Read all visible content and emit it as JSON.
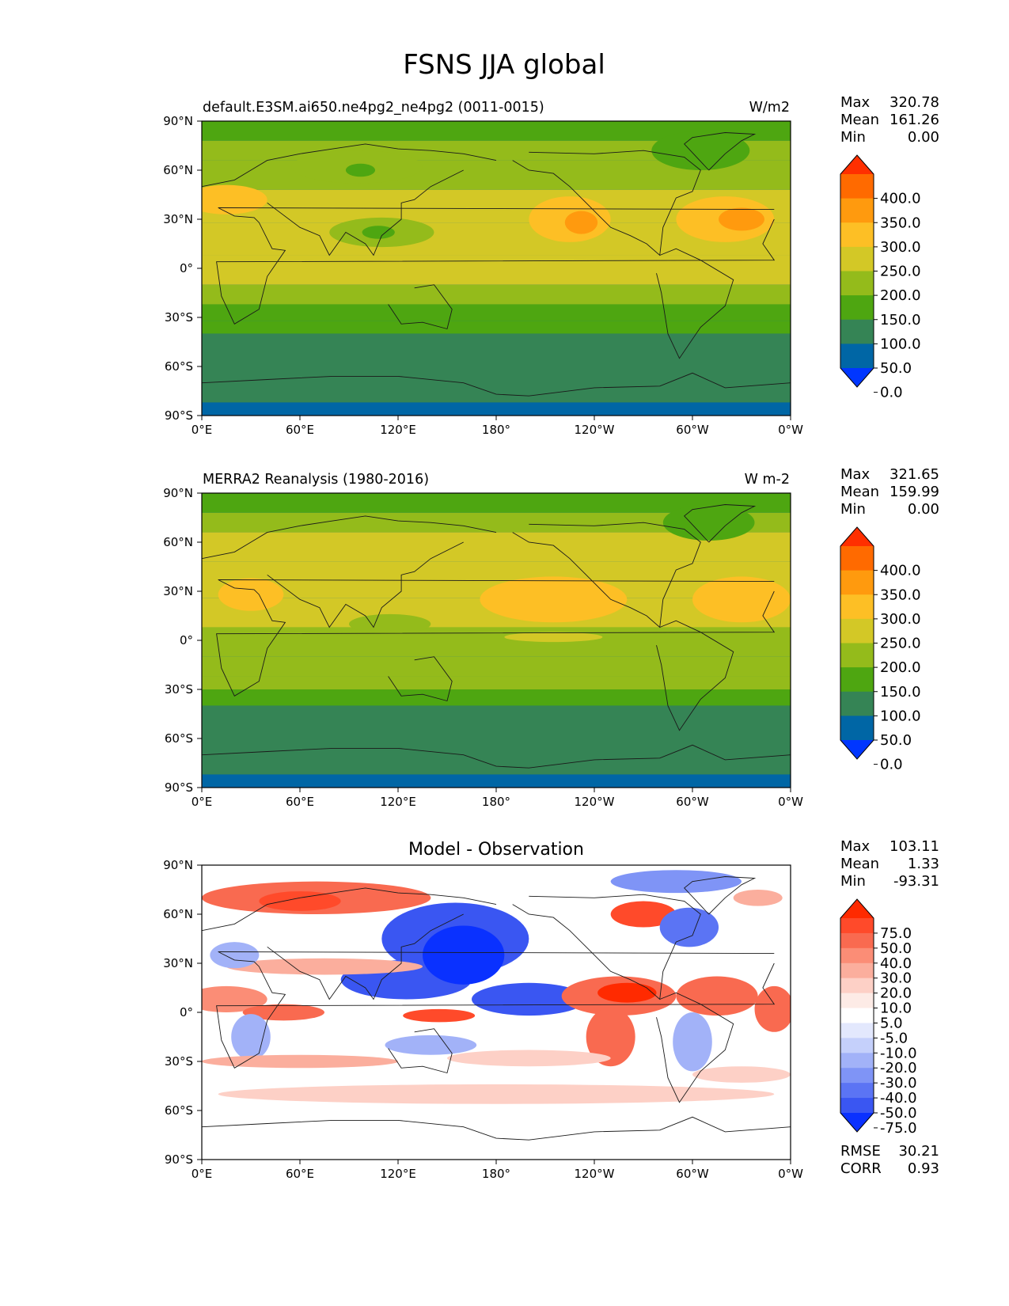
{
  "figure": {
    "title": "FSNS JJA global"
  },
  "axes": {
    "lat_ticks": [
      "90°N",
      "60°N",
      "30°N",
      "0°",
      "30°S",
      "60°S",
      "90°S"
    ],
    "lon_ticks": [
      "0°E",
      "60°E",
      "120°E",
      "180°",
      "120°W",
      "60°W",
      "0°W"
    ]
  },
  "panels": [
    {
      "id": "model",
      "title_left": "default.E3SM.ai650.ne4pg2_ne4pg2 (0011-0015)",
      "title_center": "",
      "units": "W/m2",
      "stats": {
        "max_label": "Max",
        "max": "320.78",
        "mean_label": "Mean",
        "mean": "161.26",
        "min_label": "Min",
        "min": "0.00"
      },
      "colorbar": {
        "labels": [
          "400.0",
          "350.0",
          "300.0",
          "250.0",
          "200.0",
          "150.0",
          "100.0",
          "50.0",
          "0.0"
        ],
        "colors": [
          "#ff2f00",
          "#ff6a00",
          "#ff9a0e",
          "#fdbf25",
          "#d3c826",
          "#94bb1b",
          "#4ea611",
          "#358455",
          "#0066a5",
          "#0036ff"
        ]
      }
    },
    {
      "id": "obs",
      "title_left": "MERRA2 Reanalysis (1980-2016)",
      "title_center": "",
      "units": "W m-2",
      "stats": {
        "max_label": "Max",
        "max": "321.65",
        "mean_label": "Mean",
        "mean": "159.99",
        "min_label": "Min",
        "min": "0.00"
      },
      "colorbar": {
        "labels": [
          "400.0",
          "350.0",
          "300.0",
          "250.0",
          "200.0",
          "150.0",
          "100.0",
          "50.0",
          "0.0"
        ],
        "colors": [
          "#ff2f00",
          "#ff6a00",
          "#ff9a0e",
          "#fdbf25",
          "#d3c826",
          "#94bb1b",
          "#4ea611",
          "#358455",
          "#0066a5",
          "#0036ff"
        ]
      }
    },
    {
      "id": "diff",
      "title_left": "",
      "title_center": "Model - Observation",
      "units": "",
      "stats": {
        "max_label": "Max",
        "max": "103.11",
        "mean_label": "Mean",
        "mean": "1.33",
        "min_label": "Min",
        "min": "-93.31"
      },
      "colorbar": {
        "labels": [
          "75.0",
          "50.0",
          "40.0",
          "30.0",
          "20.0",
          "10.0",
          "5.0",
          "-5.0",
          "-10.0",
          "-20.0",
          "-30.0",
          "-40.0",
          "-50.0",
          "-75.0"
        ],
        "colors": [
          "#ff2a00",
          "#ff4a2a",
          "#f96a50",
          "#fb8d76",
          "#fbae9d",
          "#fdd0c6",
          "#fdebe6",
          "#ffffff",
          "#e3e8fd",
          "#c5d0fb",
          "#a2b2f8",
          "#7f94f6",
          "#5b74f4",
          "#3a56f2",
          "#0a31ff"
        ]
      },
      "error_stats": {
        "rmse_label": "RMSE",
        "rmse": "30.21",
        "corr_label": "CORR",
        "corr": "0.93"
      }
    }
  ],
  "chart_data": {
    "type": "heatmap",
    "title": "FSNS JJA global",
    "variable": "FSNS",
    "season": "JJA",
    "x_range": [
      0,
      360
    ],
    "y_range": [
      -90,
      90
    ],
    "fields": [
      {
        "name": "default.E3SM.ai650.ne4pg2_ne4pg2 (0011-0015)",
        "units": "W/m2",
        "max": 320.78,
        "mean": 161.26,
        "min": 0.0,
        "levels": [
          0,
          50,
          100,
          150,
          200,
          250,
          300,
          350,
          400
        ],
        "zonal_bands": [
          {
            "lat": [
              78,
              90
            ],
            "value": 110
          },
          {
            "lat": [
              66,
              78
            ],
            "value": 160
          },
          {
            "lat": [
              48,
              66
            ],
            "value": 195
          },
          {
            "lat": [
              28,
              48
            ],
            "value": 235
          },
          {
            "lat": [
              8,
              28
            ],
            "value": 215
          },
          {
            "lat": [
              -10,
              8
            ],
            "value": 210
          },
          {
            "lat": [
              -22,
              -10
            ],
            "value": 175
          },
          {
            "lat": [
              -32,
              -22
            ],
            "value": 140
          },
          {
            "lat": [
              -40,
              -32
            ],
            "value": 110
          },
          {
            "lat": [
              -82,
              -40
            ],
            "value": 60
          },
          {
            "lat": [
              -90,
              -82
            ],
            "value": 10
          }
        ],
        "blobs": [
          {
            "lon": 225,
            "lat": 30,
            "rx": 25,
            "ry": 14,
            "value": 270
          },
          {
            "lon": 232,
            "lat": 28,
            "rx": 10,
            "ry": 7,
            "value": 310
          },
          {
            "lon": 320,
            "lat": 30,
            "rx": 30,
            "ry": 14,
            "value": 275
          },
          {
            "lon": 330,
            "lat": 30,
            "rx": 14,
            "ry": 7,
            "value": 305
          },
          {
            "lon": 15,
            "lat": 42,
            "rx": 25,
            "ry": 9,
            "value": 260
          },
          {
            "lon": 110,
            "lat": 22,
            "rx": 32,
            "ry": 9,
            "value": 150
          },
          {
            "lon": 108,
            "lat": 22,
            "rx": 10,
            "ry": 4,
            "value": 110
          },
          {
            "lon": 95,
            "lat": 62,
            "rx": 40,
            "ry": 10,
            "value": 150
          },
          {
            "lon": 97,
            "lat": 60,
            "rx": 9,
            "ry": 4,
            "value": 110
          },
          {
            "lon": 305,
            "lat": 72,
            "rx": 30,
            "ry": 12,
            "value": 110
          }
        ]
      },
      {
        "name": "MERRA2 Reanalysis (1980-2016)",
        "units": "W m-2",
        "max": 321.65,
        "mean": 159.99,
        "min": 0.0,
        "levels": [
          0,
          50,
          100,
          150,
          200,
          250,
          300,
          350,
          400
        ],
        "zonal_bands": [
          {
            "lat": [
              78,
              90
            ],
            "value": 110
          },
          {
            "lat": [
              66,
              78
            ],
            "value": 165
          },
          {
            "lat": [
              48,
              66
            ],
            "value": 205
          },
          {
            "lat": [
              26,
              48
            ],
            "value": 240
          },
          {
            "lat": [
              8,
              26
            ],
            "value": 220
          },
          {
            "lat": [
              -10,
              8
            ],
            "value": 185
          },
          {
            "lat": [
              -22,
              -10
            ],
            "value": 165
          },
          {
            "lat": [
              -30,
              -22
            ],
            "value": 150
          },
          {
            "lat": [
              -40,
              -30
            ],
            "value": 120
          },
          {
            "lat": [
              -82,
              -40
            ],
            "value": 60
          },
          {
            "lat": [
              -90,
              -82
            ],
            "value": 10
          }
        ],
        "blobs": [
          {
            "lon": 215,
            "lat": 25,
            "rx": 45,
            "ry": 14,
            "value": 260
          },
          {
            "lon": 330,
            "lat": 25,
            "rx": 30,
            "ry": 14,
            "value": 265
          },
          {
            "lon": 30,
            "lat": 28,
            "rx": 20,
            "ry": 10,
            "value": 270
          },
          {
            "lon": 215,
            "lat": 2,
            "rx": 30,
            "ry": 3,
            "value": 225
          },
          {
            "lon": 115,
            "lat": 10,
            "rx": 25,
            "ry": 6,
            "value": 175
          },
          {
            "lon": 310,
            "lat": 72,
            "rx": 28,
            "ry": 11,
            "value": 110
          }
        ]
      },
      {
        "name": "Model - Observation",
        "max": 103.11,
        "mean": 1.33,
        "min": -93.31,
        "rmse": 30.21,
        "corr": 0.93,
        "levels": [
          -75,
          -50,
          -40,
          -30,
          -20,
          -10,
          -5,
          5,
          10,
          20,
          30,
          40,
          50,
          75
        ],
        "zonal_bands": [
          {
            "lat": [
              -90,
              90
            ],
            "value": 0
          }
        ],
        "blobs": [
          {
            "lon": 70,
            "lat": 70,
            "rx": 70,
            "ry": 10,
            "value": 45
          },
          {
            "lon": 60,
            "lat": 68,
            "rx": 25,
            "ry": 6,
            "value": 60
          },
          {
            "lon": 155,
            "lat": 45,
            "rx": 45,
            "ry": 22,
            "value": -55
          },
          {
            "lon": 125,
            "lat": 20,
            "rx": 40,
            "ry": 12,
            "value": -60
          },
          {
            "lon": 160,
            "lat": 35,
            "rx": 25,
            "ry": 18,
            "value": -80
          },
          {
            "lon": 200,
            "lat": 8,
            "rx": 35,
            "ry": 10,
            "value": -55
          },
          {
            "lon": 255,
            "lat": 10,
            "rx": 35,
            "ry": 12,
            "value": 45
          },
          {
            "lon": 260,
            "lat": 12,
            "rx": 18,
            "ry": 6,
            "value": 80
          },
          {
            "lon": 250,
            "lat": -15,
            "rx": 15,
            "ry": 18,
            "value": 45
          },
          {
            "lon": 315,
            "lat": 10,
            "rx": 25,
            "ry": 12,
            "value": 45
          },
          {
            "lon": 350,
            "lat": 2,
            "rx": 12,
            "ry": 14,
            "value": 40
          },
          {
            "lon": 15,
            "lat": 8,
            "rx": 25,
            "ry": 8,
            "value": 35
          },
          {
            "lon": 50,
            "lat": 0,
            "rx": 25,
            "ry": 5,
            "value": 45
          },
          {
            "lon": 145,
            "lat": -2,
            "rx": 22,
            "ry": 4,
            "value": 50
          },
          {
            "lon": 270,
            "lat": 60,
            "rx": 20,
            "ry": 8,
            "value": 50
          },
          {
            "lon": 298,
            "lat": 52,
            "rx": 18,
            "ry": 12,
            "value": -50
          },
          {
            "lon": 290,
            "lat": 80,
            "rx": 40,
            "ry": 7,
            "value": -40
          },
          {
            "lon": 340,
            "lat": 70,
            "rx": 15,
            "ry": 5,
            "value": 20
          },
          {
            "lon": 75,
            "lat": 28,
            "rx": 60,
            "ry": 5,
            "value": 25
          },
          {
            "lon": 20,
            "lat": 35,
            "rx": 15,
            "ry": 8,
            "value": -25
          },
          {
            "lon": 30,
            "lat": -15,
            "rx": 12,
            "ry": 14,
            "value": -30
          },
          {
            "lon": 140,
            "lat": -20,
            "rx": 28,
            "ry": 6,
            "value": -25
          },
          {
            "lon": 300,
            "lat": -18,
            "rx": 12,
            "ry": 18,
            "value": -25
          },
          {
            "lon": 60,
            "lat": -30,
            "rx": 60,
            "ry": 4,
            "value": 20
          },
          {
            "lon": 200,
            "lat": -28,
            "rx": 50,
            "ry": 5,
            "value": 15
          },
          {
            "lon": 330,
            "lat": -38,
            "rx": 30,
            "ry": 5,
            "value": 15
          },
          {
            "lon": 180,
            "lat": -50,
            "rx": 170,
            "ry": 6,
            "value": 12
          }
        ]
      }
    ]
  }
}
